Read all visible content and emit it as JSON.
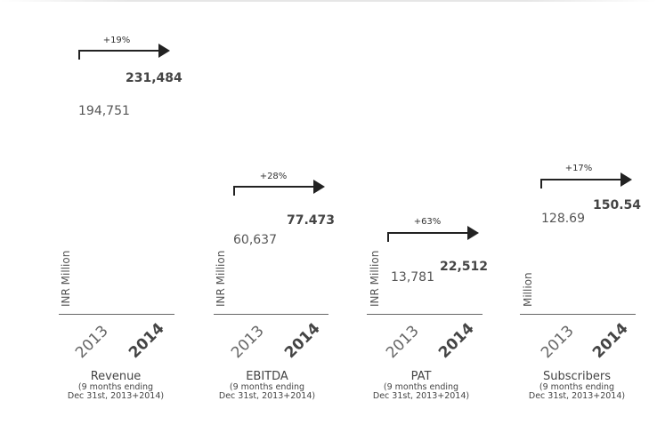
{
  "chart_data": [
    {
      "type": "bar",
      "metric": "Revenue",
      "subtitle_line1": "(9 months ending",
      "subtitle_line2": "Dec 31st, 2013+2014)",
      "unit": "INR Million",
      "categories": [
        "2013",
        "2014"
      ],
      "values": [
        194751,
        231484
      ],
      "value_labels": [
        "194,751",
        "231,484"
      ],
      "growth": "+19%"
    },
    {
      "type": "bar",
      "metric": "EBITDA",
      "subtitle_line1": "(9 months ending",
      "subtitle_line2": "Dec 31st, 2013+2014)",
      "unit": "INR Million",
      "categories": [
        "2013",
        "2014"
      ],
      "values": [
        60637,
        77473
      ],
      "value_labels": [
        "60,637",
        "77.473"
      ],
      "growth": "+28%"
    },
    {
      "type": "bar",
      "metric": "PAT",
      "subtitle_line1": "(9 months ending",
      "subtitle_line2": "Dec 31st, 2013+2014)",
      "unit": "INR Million",
      "categories": [
        "2013",
        "2014"
      ],
      "values": [
        13781,
        22512
      ],
      "value_labels": [
        "13,781",
        "22,512"
      ],
      "growth": "+63%"
    },
    {
      "type": "bar",
      "metric": "Subscribers",
      "subtitle_line1": "(9 months ending",
      "subtitle_line2": "Dec 31st, 2013+2014)",
      "unit": "Million",
      "categories": [
        "2013",
        "2014"
      ],
      "values": [
        128.69,
        150.54
      ],
      "value_labels": [
        "128.69",
        "150.54"
      ],
      "growth": "+17%"
    }
  ]
}
